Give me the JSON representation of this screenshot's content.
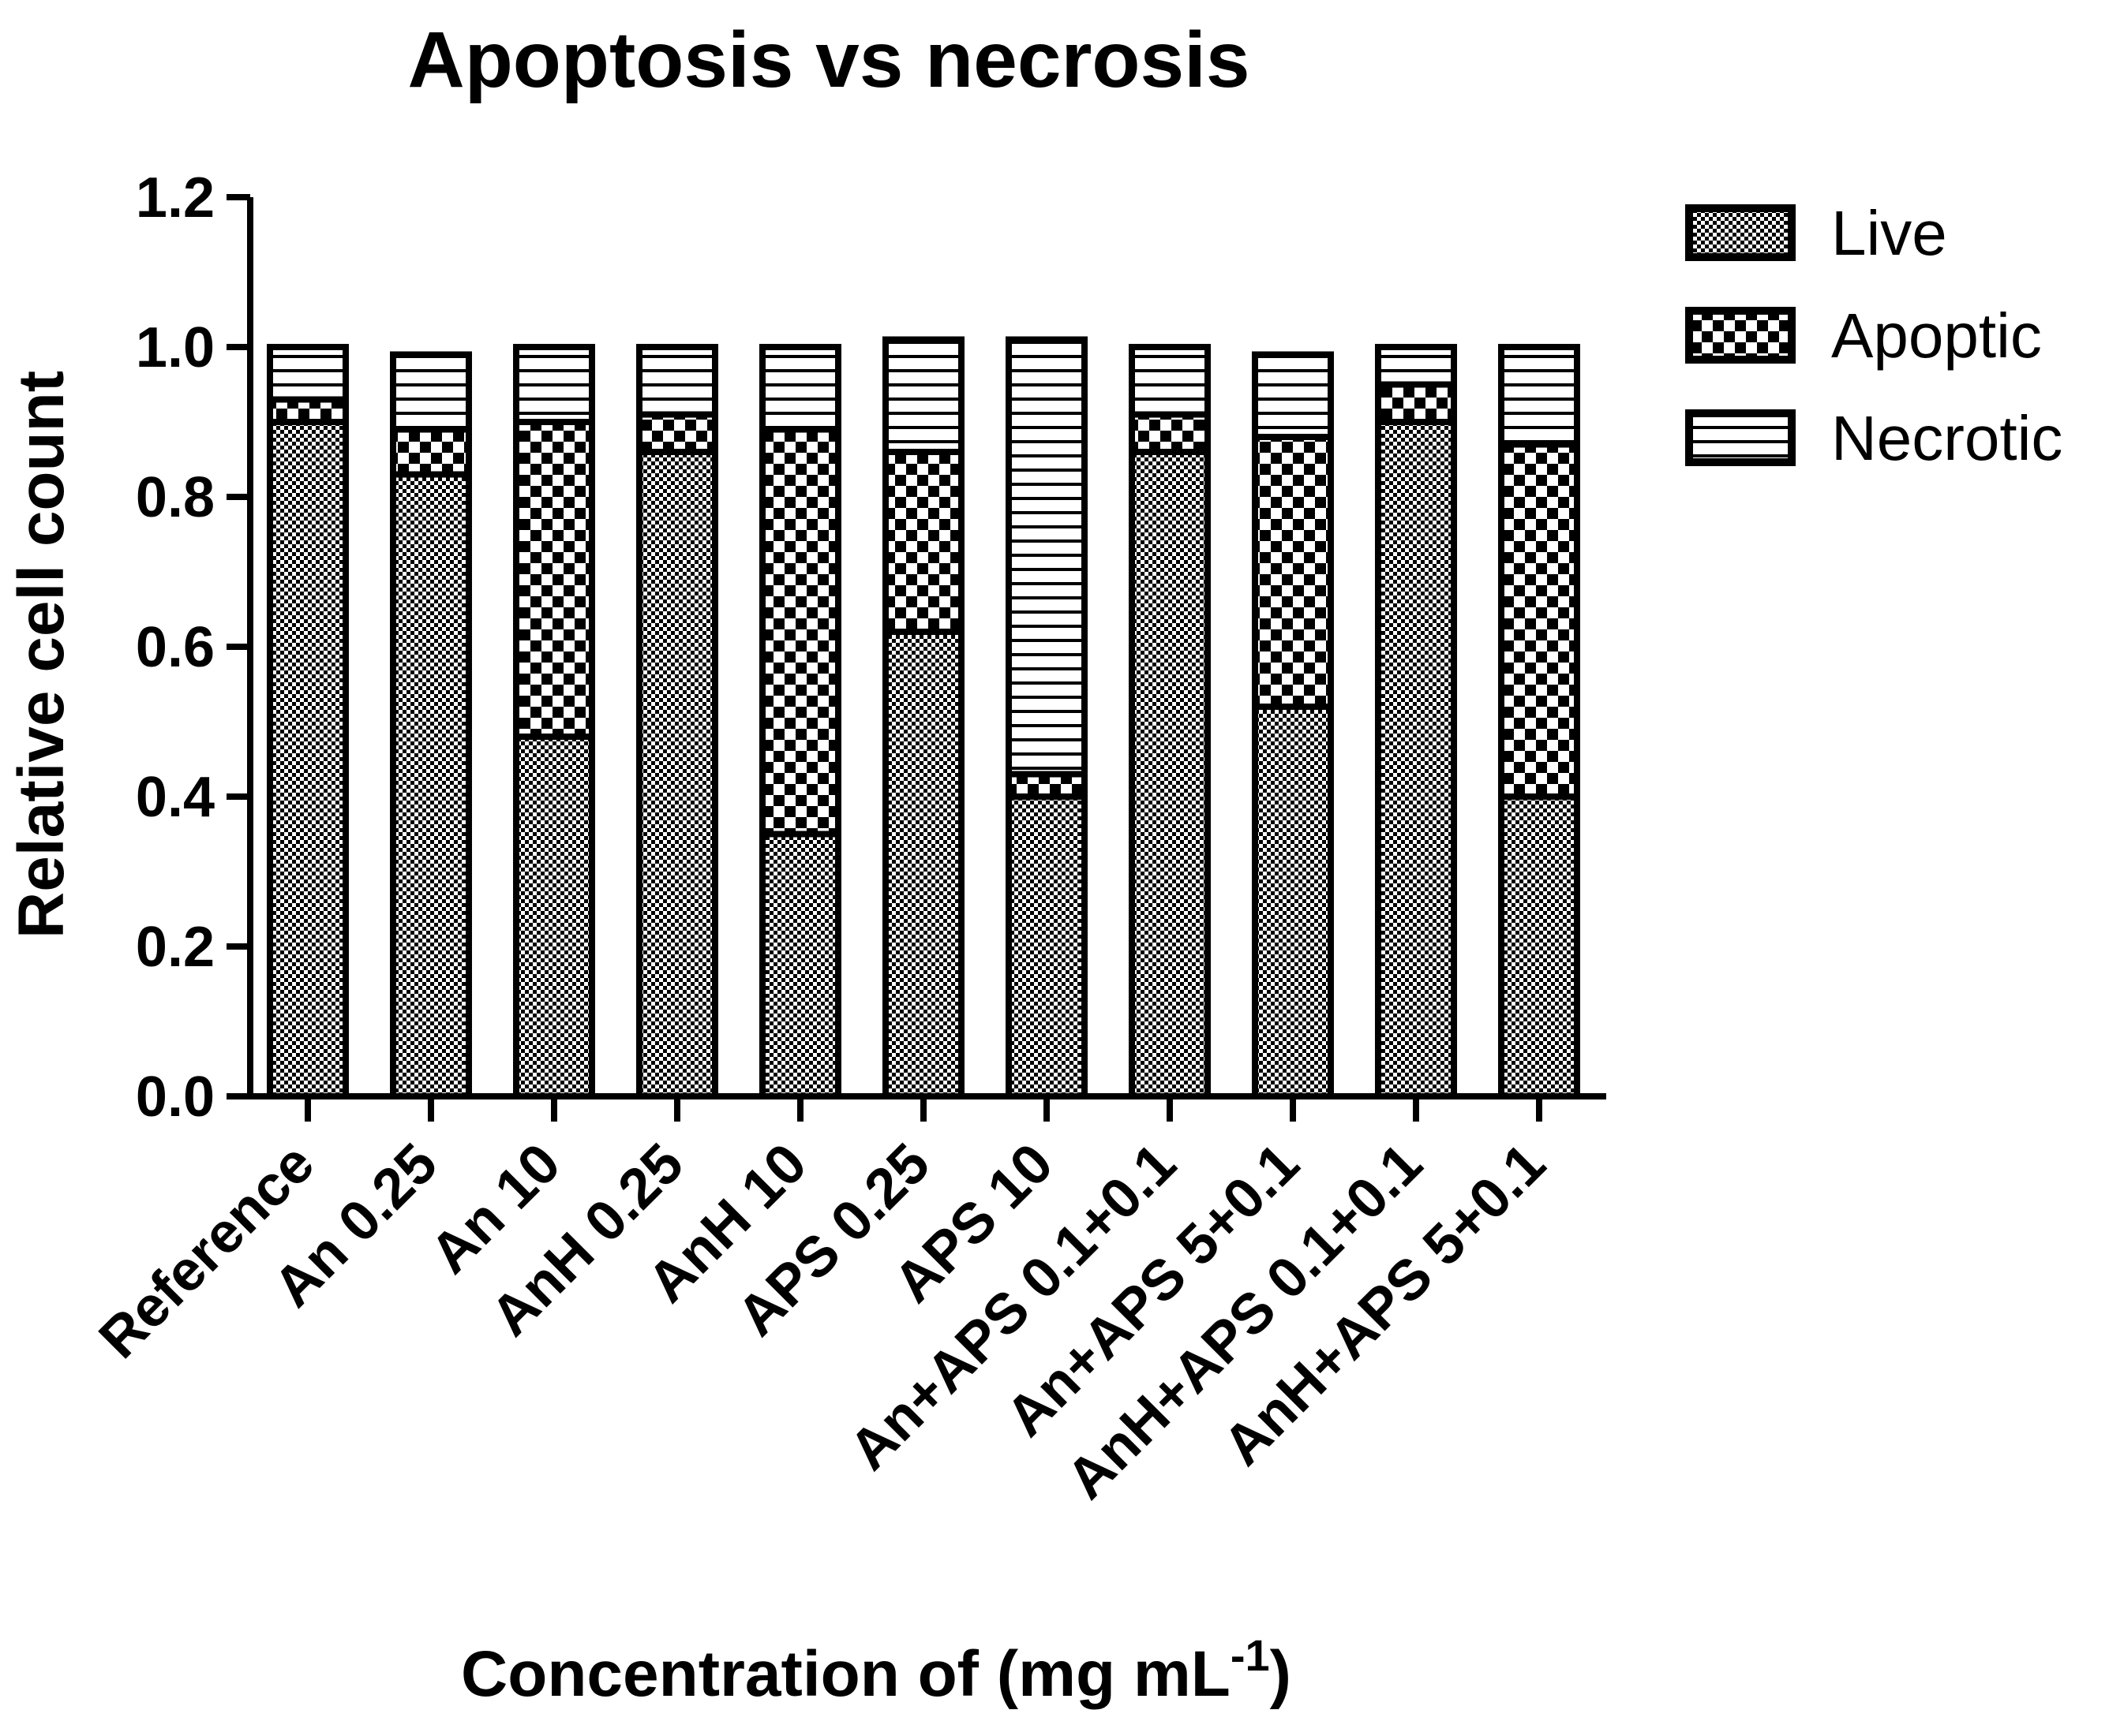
{
  "chart_data": {
    "type": "bar",
    "stacked": true,
    "title": "Apoptosis vs necrosis",
    "xlabel": "Concentration of (mg mL",
    "xlabel_superscript": "-1",
    "xlabel_suffix": ")",
    "ylabel": "Relative cell count",
    "ylim": [
      0,
      1.2
    ],
    "yticks": [
      "0.0",
      "0.2",
      "0.4",
      "0.6",
      "0.8",
      "1.0",
      "1.2"
    ],
    "categories": [
      "Reference",
      "An 0.25",
      "An 10",
      "AnH 0.25",
      "AnH 10",
      "APS 0.25",
      "APS 10",
      "An+APS 0.1+0.1",
      "An+APS 5+0.1",
      "AnH+APS 0.1+0.1",
      "AnH+APS 5+0.1"
    ],
    "series": [
      {
        "name": "Live",
        "pattern": "fine-check",
        "values": [
          0.9,
          0.83,
          0.48,
          0.86,
          0.35,
          0.62,
          0.4,
          0.86,
          0.52,
          0.9,
          0.4
        ]
      },
      {
        "name": "Apoptic",
        "pattern": "coarse-check",
        "values": [
          0.03,
          0.06,
          0.42,
          0.05,
          0.54,
          0.24,
          0.03,
          0.05,
          0.36,
          0.05,
          0.47
        ]
      },
      {
        "name": "Necrotic",
        "pattern": "horizontal-lines",
        "values": [
          0.07,
          0.1,
          0.1,
          0.09,
          0.11,
          0.15,
          0.58,
          0.09,
          0.11,
          0.05,
          0.13
        ]
      }
    ],
    "legend": {
      "position": "top-right"
    }
  }
}
